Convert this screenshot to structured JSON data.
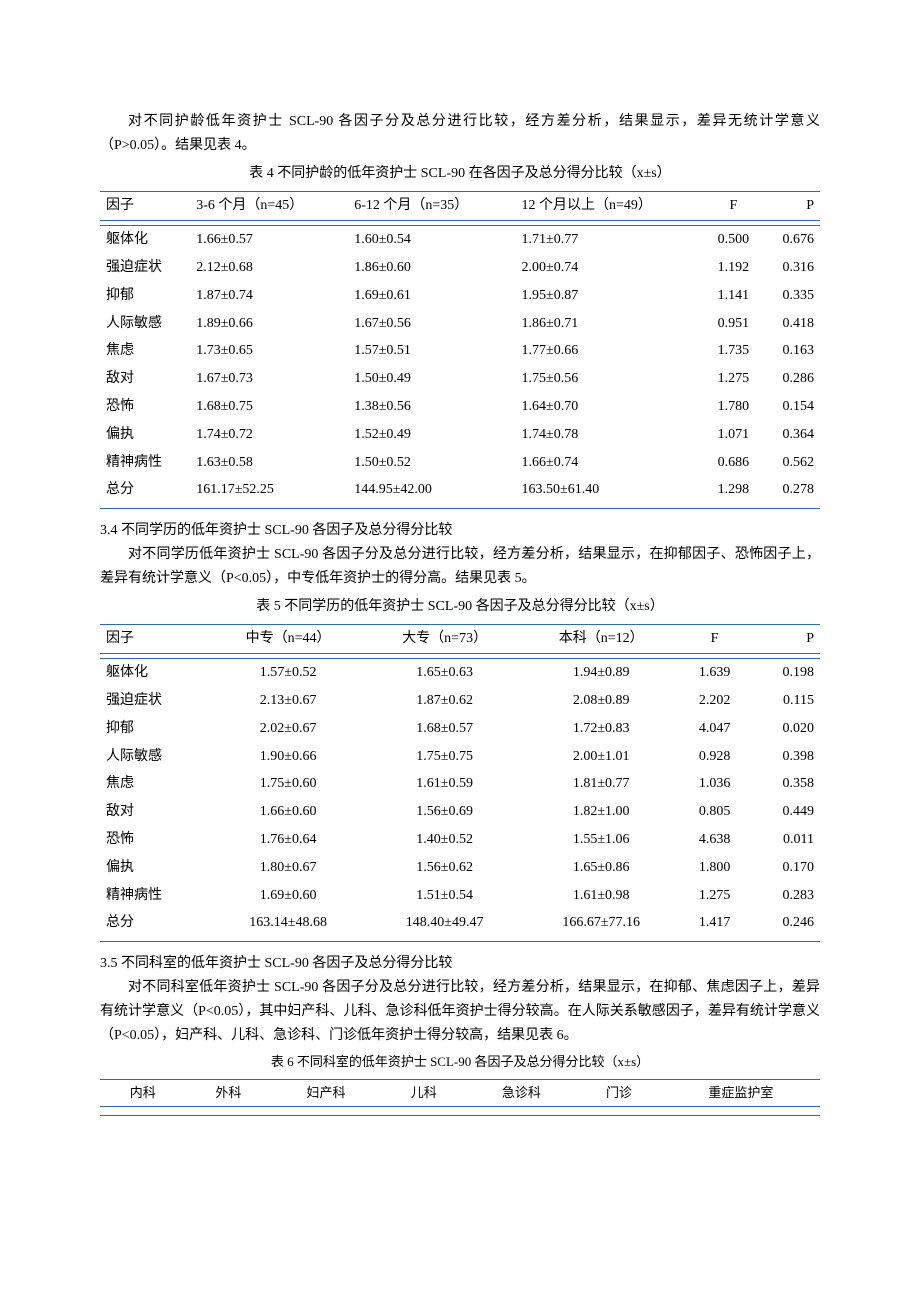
{
  "intro4": {
    "p1": "对不同护龄低年资护士 SCL-90 各因子分及总分进行比较，经方差分析，结果显示，差异无统计学意义（P>0.05）。结果见表 4。",
    "caption": "表 4 不同护龄的低年资护士 SCL-90 在各因子及总分得分比较（x±s）"
  },
  "table4": {
    "headers": {
      "factor": "因子",
      "g1": "3-6 个月（n=45）",
      "g2": "6-12 个月（n=35）",
      "g3": "12 个月以上（n=49）",
      "F": "F",
      "P": "P"
    },
    "rows": [
      {
        "f": "躯体化",
        "g1": "1.66±0.57",
        "g2": "1.60±0.54",
        "g3": "1.71±0.77",
        "F": "0.500",
        "P": "0.676"
      },
      {
        "f": "强迫症状",
        "g1": "2.12±0.68",
        "g2": "1.86±0.60",
        "g3": "2.00±0.74",
        "F": "1.192",
        "P": "0.316"
      },
      {
        "f": "抑郁",
        "g1": "1.87±0.74",
        "g2": "1.69±0.61",
        "g3": "1.95±0.87",
        "F": "1.141",
        "P": "0.335"
      },
      {
        "f": "人际敏感",
        "g1": "1.89±0.66",
        "g2": "1.67±0.56",
        "g3": "1.86±0.71",
        "F": "0.951",
        "P": "0.418"
      },
      {
        "f": "焦虑",
        "g1": "1.73±0.65",
        "g2": "1.57±0.51",
        "g3": "1.77±0.66",
        "F": "1.735",
        "P": "0.163"
      },
      {
        "f": "敌对",
        "g1": "1.67±0.73",
        "g2": "1.50±0.49",
        "g3": "1.75±0.56",
        "F": "1.275",
        "P": "0.286"
      },
      {
        "f": "恐怖",
        "g1": "1.68±0.75",
        "g2": "1.38±0.56",
        "g3": "1.64±0.70",
        "F": "1.780",
        "P": "0.154"
      },
      {
        "f": "偏执",
        "g1": "1.74±0.72",
        "g2": "1.52±0.49",
        "g3": "1.74±0.78",
        "F": "1.071",
        "P": "0.364"
      },
      {
        "f": "精神病性",
        "g1": "1.63±0.58",
        "g2": "1.50±0.52",
        "g3": "1.66±0.74",
        "F": "0.686",
        "P": "0.562"
      },
      {
        "f": "总分",
        "g1": "161.17±52.25",
        "g2": "144.95±42.00",
        "g3": "163.50±61.40",
        "F": "1.298",
        "P": "0.278"
      }
    ]
  },
  "section34": {
    "head": "3.4 不同学历的低年资护士 SCL-90 各因子及总分得分比较",
    "p1": "对不同学历低年资护士 SCL-90 各因子分及总分进行比较，经方差分析，结果显示，在抑郁因子、恐怖因子上，差异有统计学意义（P<0.05），中专低年资护士的得分高。结果见表 5。",
    "caption": "表 5 不同学历的低年资护士 SCL-90 各因子及总分得分比较（x±s）"
  },
  "table5": {
    "headers": {
      "factor": "因子",
      "g1": "中专（n=44）",
      "g2": "大专（n=73）",
      "g3": "本科（n=12）",
      "F": "F",
      "P": "P"
    },
    "rows": [
      {
        "f": "躯体化",
        "g1": "1.57±0.52",
        "g2": "1.65±0.63",
        "g3": "1.94±0.89",
        "F": "1.639",
        "P": "0.198"
      },
      {
        "f": "强迫症状",
        "g1": "2.13±0.67",
        "g2": "1.87±0.62",
        "g3": "2.08±0.89",
        "F": "2.202",
        "P": "0.115"
      },
      {
        "f": "抑郁",
        "g1": "2.02±0.67",
        "g2": "1.68±0.57",
        "g3": "1.72±0.83",
        "F": "4.047",
        "P": "0.020"
      },
      {
        "f": "人际敏感",
        "g1": "1.90±0.66",
        "g2": "1.75±0.75",
        "g3": "2.00±1.01",
        "F": "0.928",
        "P": "0.398"
      },
      {
        "f": "焦虑",
        "g1": "1.75±0.60",
        "g2": "1.61±0.59",
        "g3": "1.81±0.77",
        "F": "1.036",
        "P": "0.358"
      },
      {
        "f": "敌对",
        "g1": "1.66±0.60",
        "g2": "1.56±0.69",
        "g3": "1.82±1.00",
        "F": "0.805",
        "P": "0.449"
      },
      {
        "f": "恐怖",
        "g1": "1.76±0.64",
        "g2": "1.40±0.52",
        "g3": "1.55±1.06",
        "F": "4.638",
        "P": "0.011"
      },
      {
        "f": "偏执",
        "g1": "1.80±0.67",
        "g2": "1.56±0.62",
        "g3": "1.65±0.86",
        "F": "1.800",
        "P": "0.170"
      },
      {
        "f": "精神病性",
        "g1": "1.69±0.60",
        "g2": "1.51±0.54",
        "g3": "1.61±0.98",
        "F": "1.275",
        "P": "0.283"
      },
      {
        "f": "总分",
        "g1": "163.14±48.68",
        "g2": "148.40±49.47",
        "g3": "166.67±77.16",
        "F": "1.417",
        "P": "0.246"
      }
    ]
  },
  "section35": {
    "head": "3.5 不同科室的低年资护士 SCL-90 各因子及总分得分比较",
    "p1": "对不同科室低年资护士 SCL-90 各因子分及总分进行比较，经方差分析，结果显示，在抑郁、焦虑因子上，差异有统计学意义（P<0.05），其中妇产科、儿科、急诊科低年资护士得分较高。在人际关系敏感因子，差异有统计学意义（P<0.05），妇产科、儿科、急诊科、门诊低年资护士得分较高，结果见表 6。",
    "caption": "表 6 不同科室的低年资护士 SCL-90 各因子及总分得分比较（x±s）"
  },
  "table6": {
    "headers": [
      "内科",
      "外科",
      "妇产科",
      "儿科",
      "急诊科",
      "门诊",
      "重症监护室"
    ]
  },
  "style": {
    "rule_color": "#2e6ba8",
    "font_family": "SimSun",
    "body_fontsize_pt": 10.5
  }
}
